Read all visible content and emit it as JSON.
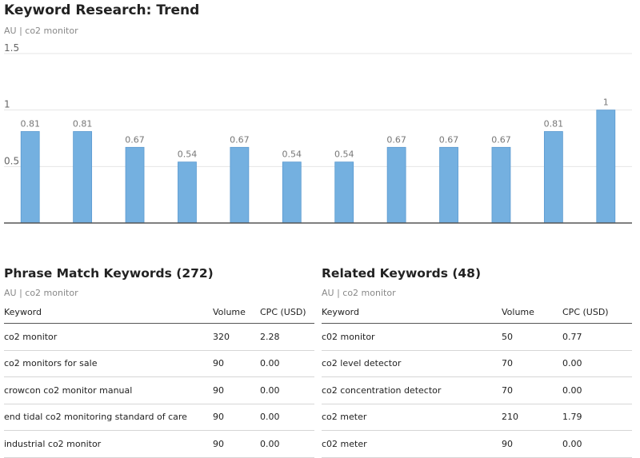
{
  "header": {
    "title": "Keyword Research: Trend",
    "subtitle": "AU | co2 monitor"
  },
  "chart_data": {
    "type": "bar",
    "title": "",
    "xlabel": "",
    "ylabel": "",
    "ylim": [
      0,
      1.5
    ],
    "yticks": [
      "0.5",
      "1",
      "1.5"
    ],
    "grid": true,
    "legend": "none",
    "color": "#74b0e0",
    "categories": [
      "",
      "",
      "",
      "",
      "",
      "",
      "",
      "",
      "",
      "",
      "",
      ""
    ],
    "values": [
      0.81,
      0.81,
      0.67,
      0.54,
      0.67,
      0.54,
      0.54,
      0.67,
      0.67,
      0.67,
      0.81,
      1
    ],
    "labels": [
      "0.81",
      "0.81",
      "0.67",
      "0.54",
      "0.67",
      "0.54",
      "0.54",
      "0.67",
      "0.67",
      "0.67",
      "0.81",
      "1"
    ]
  },
  "phrase_match": {
    "title": "Phrase Match Keywords (272)",
    "subtitle": "AU | co2 monitor",
    "columns": [
      "Keyword",
      "Volume",
      "CPC (USD)"
    ],
    "rows": [
      [
        "co2 monitor",
        "320",
        "2.28"
      ],
      [
        "co2 monitors for sale",
        "90",
        "0.00"
      ],
      [
        "crowcon co2 monitor manual",
        "90",
        "0.00"
      ],
      [
        "end tidal co2 monitoring standard of care",
        "90",
        "0.00"
      ],
      [
        "industrial co2 monitor",
        "90",
        "0.00"
      ]
    ]
  },
  "related": {
    "title": "Related Keywords (48)",
    "subtitle": "AU | co2 monitor",
    "columns": [
      "Keyword",
      "Volume",
      "CPC (USD)"
    ],
    "rows": [
      [
        "c02 monitor",
        "50",
        "0.77"
      ],
      [
        "co2 level detector",
        "70",
        "0.00"
      ],
      [
        "co2 concentration detector",
        "70",
        "0.00"
      ],
      [
        "co2 meter",
        "210",
        "1.79"
      ],
      [
        "c02 meter",
        "90",
        "0.00"
      ]
    ]
  }
}
